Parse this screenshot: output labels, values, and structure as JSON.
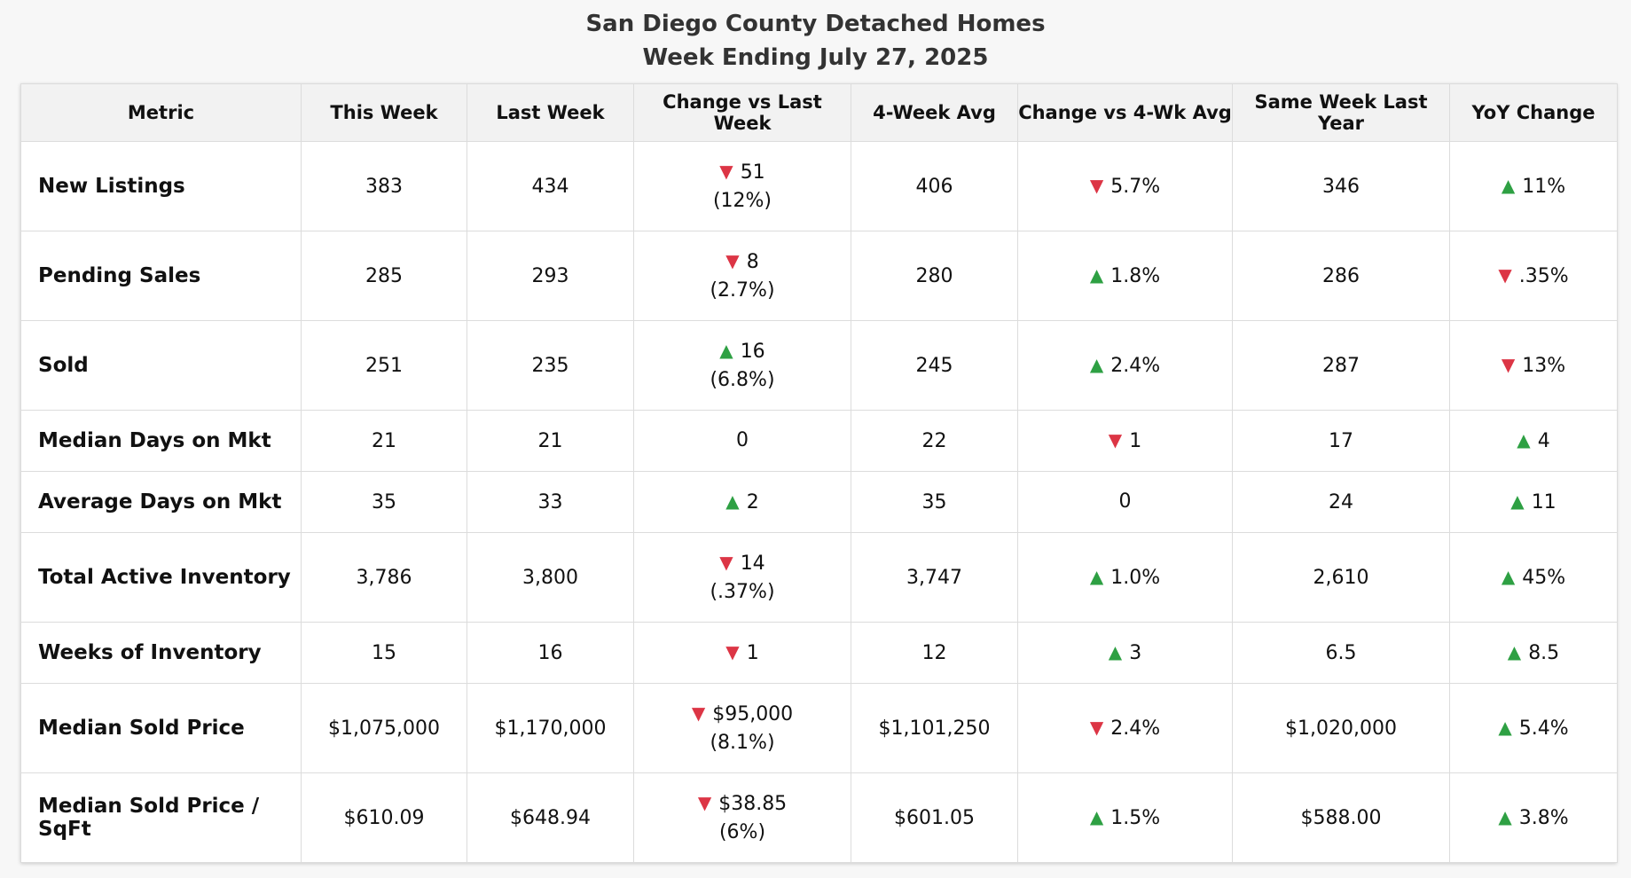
{
  "header": {
    "title": "San Diego County Detached Homes",
    "subtitle": "Week Ending July 27, 2025"
  },
  "colors": {
    "up": "#2ea043",
    "down": "#dc3545"
  },
  "table": {
    "columns": [
      "Metric",
      "This Week",
      "Last Week",
      "Change vs Last Week",
      "4-Week Avg",
      "Change vs 4-Wk Avg",
      "Same Week Last Year",
      "YoY Change"
    ],
    "rows": [
      {
        "metric": "New Listings",
        "this_week": "383",
        "last_week": "434",
        "chg_last": {
          "dir": "down",
          "value": "51",
          "pct": "(12%)"
        },
        "avg4": "406",
        "chg_avg": {
          "dir": "down",
          "value": "5.7%"
        },
        "last_year": "346",
        "yoy": {
          "dir": "up",
          "value": "11%"
        }
      },
      {
        "metric": "Pending Sales",
        "this_week": "285",
        "last_week": "293",
        "chg_last": {
          "dir": "down",
          "value": "8",
          "pct": "(2.7%)"
        },
        "avg4": "280",
        "chg_avg": {
          "dir": "up",
          "value": "1.8%"
        },
        "last_year": "286",
        "yoy": {
          "dir": "down",
          "value": ".35%"
        }
      },
      {
        "metric": "Sold",
        "this_week": "251",
        "last_week": "235",
        "chg_last": {
          "dir": "up",
          "value": "16",
          "pct": "(6.8%)"
        },
        "avg4": "245",
        "chg_avg": {
          "dir": "up",
          "value": "2.4%"
        },
        "last_year": "287",
        "yoy": {
          "dir": "down",
          "value": "13%"
        }
      },
      {
        "metric": "Median Days on Mkt",
        "this_week": "21",
        "last_week": "21",
        "chg_last": {
          "dir": "none",
          "value": "0",
          "pct": ""
        },
        "avg4": "22",
        "chg_avg": {
          "dir": "down",
          "value": "1"
        },
        "last_year": "17",
        "yoy": {
          "dir": "up",
          "value": "4"
        }
      },
      {
        "metric": "Average Days on Mkt",
        "this_week": "35",
        "last_week": "33",
        "chg_last": {
          "dir": "up",
          "value": "2",
          "pct": ""
        },
        "avg4": "35",
        "chg_avg": {
          "dir": "none",
          "value": "0"
        },
        "last_year": "24",
        "yoy": {
          "dir": "up",
          "value": "11"
        }
      },
      {
        "metric": "Total Active Inventory",
        "this_week": "3,786",
        "last_week": "3,800",
        "chg_last": {
          "dir": "down",
          "value": "14",
          "pct": "(.37%)"
        },
        "avg4": "3,747",
        "chg_avg": {
          "dir": "up",
          "value": "1.0%"
        },
        "last_year": "2,610",
        "yoy": {
          "dir": "up",
          "value": "45%"
        }
      },
      {
        "metric": "Weeks of Inventory",
        "this_week": "15",
        "last_week": "16",
        "chg_last": {
          "dir": "down",
          "value": "1",
          "pct": ""
        },
        "avg4": "12",
        "chg_avg": {
          "dir": "up",
          "value": "3"
        },
        "last_year": "6.5",
        "yoy": {
          "dir": "up",
          "value": "8.5"
        }
      },
      {
        "metric": "Median Sold Price",
        "this_week": "$1,075,000",
        "last_week": "$1,170,000",
        "chg_last": {
          "dir": "down",
          "value": "$95,000",
          "pct": "(8.1%)"
        },
        "avg4": "$1,101,250",
        "chg_avg": {
          "dir": "down",
          "value": "2.4%"
        },
        "last_year": "$1,020,000",
        "yoy": {
          "dir": "up",
          "value": "5.4%"
        }
      },
      {
        "metric": "Median Sold Price / SqFt",
        "this_week": "$610.09",
        "last_week": "$648.94",
        "chg_last": {
          "dir": "down",
          "value": "$38.85",
          "pct": "(6%)"
        },
        "avg4": "$601.05",
        "chg_avg": {
          "dir": "up",
          "value": "1.5%"
        },
        "last_year": "$588.00",
        "yoy": {
          "dir": "up",
          "value": "3.8%"
        }
      }
    ]
  }
}
